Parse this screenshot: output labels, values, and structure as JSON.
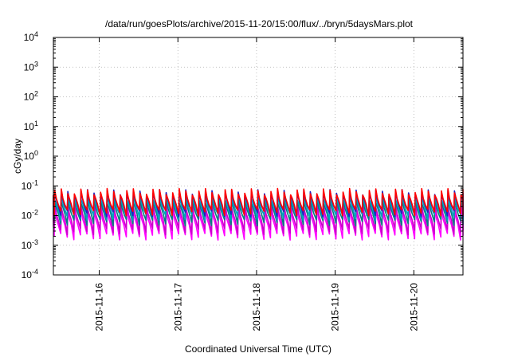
{
  "chart_data": {
    "type": "line",
    "title": "/data/run/goesPlots/archive/2015-11-20/15:00/flux/../bryn/5daysMars.plot",
    "xlabel": "Coordinated Universal Time (UTC)",
    "ylabel": "cGy/day",
    "x_range": [
      "2015-11-15T10:00",
      "2015-11-20T15:00"
    ],
    "y_range": [
      0.0001,
      10000
    ],
    "y_scale": "log",
    "grid": true,
    "y_ticks": [
      {
        "value": 0.0001,
        "base": "10",
        "exp": "-4"
      },
      {
        "value": 0.001,
        "base": "10",
        "exp": "-3"
      },
      {
        "value": 0.01,
        "base": "10",
        "exp": "-2"
      },
      {
        "value": 0.1,
        "base": "10",
        "exp": "-1"
      },
      {
        "value": 1,
        "base": "10",
        "exp": "0"
      },
      {
        "value": 10,
        "base": "10",
        "exp": "1"
      },
      {
        "value": 100,
        "base": "10",
        "exp": "2"
      },
      {
        "value": 1000,
        "base": "10",
        "exp": "3"
      },
      {
        "value": 10000,
        "base": "10",
        "exp": "4"
      }
    ],
    "x_ticks": [
      {
        "value": "2015-11-16T00:00",
        "label": "2015-11-16"
      },
      {
        "value": "2015-11-17T00:00",
        "label": "2015-11-17"
      },
      {
        "value": "2015-11-18T00:00",
        "label": "2015-11-18"
      },
      {
        "value": "2015-11-19T00:00",
        "label": "2015-11-19"
      },
      {
        "value": "2015-11-20T00:00",
        "label": "2015-11-20"
      }
    ],
    "cycle_hours": 2,
    "series": [
      {
        "color": "#ff00ff",
        "values_approx": {
          "peak": 0.018,
          "trough": 0.002
        }
      },
      {
        "color": "#cc00cc",
        "values_approx": {
          "peak": 0.025,
          "trough": 0.003
        }
      },
      {
        "color": "#008080",
        "values_approx": {
          "peak": 0.035,
          "trough": 0.006
        }
      },
      {
        "color": "#00a0c0",
        "values_approx": {
          "peak": 0.045,
          "trough": 0.009
        }
      },
      {
        "color": "#2020c0",
        "values_approx": {
          "peak": 0.06,
          "trough": 0.012
        }
      },
      {
        "color": "#ff0000",
        "values_approx": {
          "peak": 0.065,
          "trough": 0.013
        }
      }
    ]
  }
}
